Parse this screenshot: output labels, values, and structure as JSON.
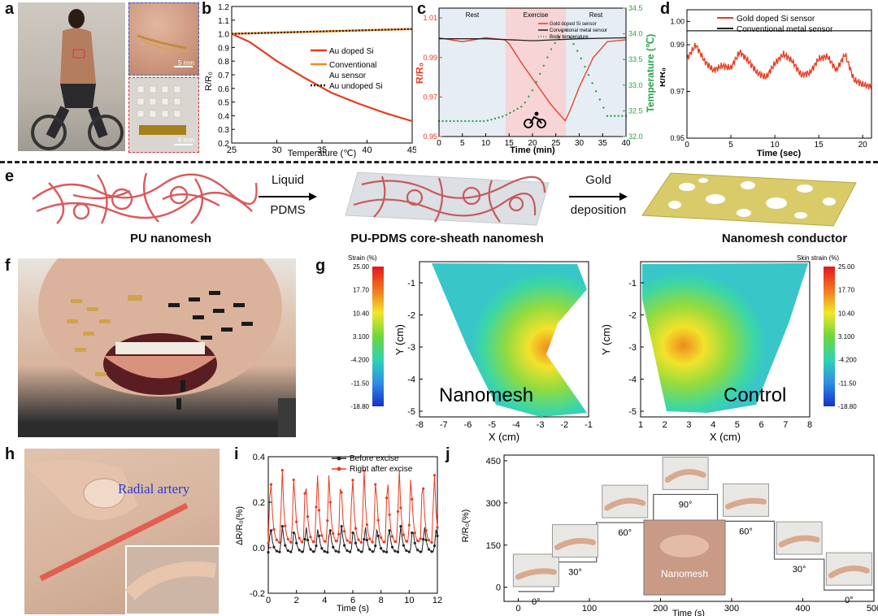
{
  "panels": {
    "a": "a",
    "b": "b",
    "c": "c",
    "d": "d",
    "e": "e",
    "f": "f",
    "g": "g",
    "h": "h",
    "i": "i",
    "j": "j"
  },
  "a": {
    "scale_top": "5 mm",
    "scale_bottom": "6 mm"
  },
  "b": {
    "chart_data": {
      "type": "line",
      "xlabel": "Temperature (℃)",
      "ylabel": "R/R₀",
      "xlim": [
        25,
        45
      ],
      "ylim": [
        0.2,
        1.2
      ],
      "xticks": [
        25,
        30,
        35,
        40,
        45
      ],
      "yticks": [
        0.2,
        0.3,
        0.4,
        0.5,
        0.6,
        0.7,
        0.8,
        0.9,
        1.0,
        1.1,
        1.2
      ],
      "series": [
        {
          "name": "Au doped Si",
          "color": "#e83a1e",
          "x": [
            25,
            27,
            30,
            33,
            36,
            39,
            42,
            45
          ],
          "y": [
            1.0,
            0.94,
            0.8,
            0.68,
            0.57,
            0.49,
            0.42,
            0.36
          ]
        },
        {
          "name": "Conventional Au sensor",
          "color": "#f08a24",
          "x": [
            25,
            45
          ],
          "y": [
            1.0,
            1.035
          ]
        },
        {
          "name": "Au undoped Si",
          "color": "#222222",
          "x": [
            25,
            45
          ],
          "y": [
            1.0,
            1.035
          ]
        }
      ],
      "legend": [
        "Au doped Si",
        "Conventional",
        "Au sensor",
        "Au undoped Si"
      ]
    }
  },
  "c": {
    "chart_data": {
      "type": "line",
      "xlabel": "Time (min)",
      "ylabel_left": "R/R₀",
      "ylabel_right": "Temperature (℃)",
      "xlim": [
        0,
        40
      ],
      "ylim": [
        0.95,
        1.015
      ],
      "ylim_right": [
        32.0,
        34.5
      ],
      "xticks": [
        0,
        5,
        10,
        15,
        20,
        25,
        30,
        35,
        40
      ],
      "yticks": [
        0.95,
        0.97,
        0.99,
        1.01
      ],
      "yticks_right": [
        32.0,
        32.5,
        33.0,
        33.5,
        34.0,
        34.5
      ],
      "regions": [
        "Rest",
        "Exercise",
        "Rest"
      ],
      "series": [
        {
          "name": "Gold doped Si sensor",
          "color": "#e83a1e",
          "x": [
            0,
            5,
            10,
            14,
            15,
            18,
            21,
            24,
            27,
            28,
            30,
            33,
            36,
            40
          ],
          "y": [
            1.0,
            0.998,
            1.0,
            0.999,
            0.997,
            0.986,
            0.976,
            0.966,
            0.958,
            0.963,
            0.975,
            0.99,
            0.998,
            0.999
          ]
        },
        {
          "name": "Conventional metal sensor",
          "color": "#222222",
          "x": [
            0,
            10,
            20,
            30,
            40
          ],
          "y": [
            0.9995,
            0.9995,
            0.9985,
            0.9995,
            1.0
          ]
        },
        {
          "name": "Body temperature",
          "color": "#2aa24a",
          "x": [
            0,
            5,
            10,
            14,
            16,
            18,
            20,
            22,
            24,
            26,
            27,
            30,
            33,
            36,
            40
          ],
          "y": [
            32.3,
            32.3,
            32.3,
            32.4,
            32.5,
            32.6,
            32.9,
            33.3,
            33.7,
            34.0,
            34.1,
            33.6,
            33.0,
            32.4,
            32.4
          ]
        }
      ]
    }
  },
  "d": {
    "chart_data": {
      "type": "line",
      "xlabel": "Time (sec)",
      "ylabel": "R/R₀",
      "xlim": [
        0,
        21
      ],
      "ylim": [
        0.95,
        1.005
      ],
      "xticks": [
        0,
        5,
        10,
        15,
        20
      ],
      "yticks": [
        0.95,
        0.97,
        0.99,
        1.0
      ],
      "series": [
        {
          "name": "Gold doped Si sensor",
          "color": "#e83a1e",
          "x": [
            0,
            1,
            2,
            3,
            4,
            5,
            6,
            7,
            8,
            9,
            10,
            11,
            12,
            13,
            14,
            15,
            16,
            17,
            18,
            19,
            20,
            21
          ],
          "y": [
            0.984,
            0.99,
            0.983,
            0.979,
            0.981,
            0.98,
            0.987,
            0.983,
            0.978,
            0.976,
            0.982,
            0.986,
            0.983,
            0.977,
            0.978,
            0.984,
            0.985,
            0.979,
            0.986,
            0.975,
            0.973,
            0.972
          ]
        },
        {
          "name": "Conventional metal sensor",
          "color": "#222222",
          "x": [
            0,
            21
          ],
          "y": [
            0.996,
            0.996
          ]
        }
      ]
    }
  },
  "e": {
    "arrow1_top": "Liquid",
    "arrow1_bottom": "PDMS",
    "arrow2_top": "Gold",
    "arrow2_bottom": "deposition",
    "cap1": "PU nanomesh",
    "cap2": "PU-PDMS core-sheath nanomesh",
    "cap3": "Nanomesh conductor"
  },
  "g": {
    "left_title": "Strain (%)",
    "right_title": "Skin strain (%)",
    "left_label": "Nanomesh",
    "right_label": "Control",
    "colorbar_ticks": [
      "25.00",
      "17.70",
      "10.40",
      "3.100",
      "-4.200",
      "-11.50",
      "-18.80"
    ],
    "colorbar_ticks_right": [
      "25.00",
      "17.70",
      "10.40",
      "3.100",
      "-4.200",
      "-11.50",
      "-18.80"
    ],
    "ylabel": "Y (cm)",
    "xlabel": "X (cm)",
    "yticks": [
      "-1",
      "-2",
      "-3",
      "-4",
      "-5"
    ],
    "xticks_left": [
      "-8",
      "-7",
      "-6",
      "-5",
      "-4",
      "-3",
      "-2",
      "-1"
    ],
    "xticks_right": [
      "1",
      "2",
      "3",
      "4",
      "5",
      "6",
      "7",
      "8"
    ]
  },
  "h": {
    "label": "Radial artery"
  },
  "i": {
    "chart_data": {
      "type": "line",
      "xlabel": "Time (s)",
      "ylabel": "ΔR/R₀(%)",
      "xlim": [
        0,
        12
      ],
      "ylim": [
        -0.2,
        0.4
      ],
      "xticks": [
        0,
        2,
        4,
        6,
        8,
        10,
        12
      ],
      "yticks": [
        -0.2,
        0.0,
        0.2,
        0.4
      ],
      "series": [
        {
          "name": "Before excise",
          "color": "#222222",
          "period": 0.84,
          "base": 0.0,
          "peak": 0.12
        },
        {
          "name": "Right after excise",
          "color": "#e83a1e",
          "period": 0.83,
          "base": 0.02,
          "peak": 0.33
        }
      ]
    }
  },
  "j": {
    "chart_data": {
      "type": "line",
      "xlabel": "Time (s)",
      "ylabel": "R/R₀(%)",
      "xlim": [
        -20,
        500
      ],
      "ylim": [
        -50,
        470
      ],
      "xticks": [
        0,
        100,
        200,
        300,
        400,
        500
      ],
      "yticks": [
        0,
        150,
        300,
        450
      ],
      "steps": [
        {
          "x0": 0,
          "x1": 50,
          "y": -15
        },
        {
          "x0": 50,
          "x1": 110,
          "y": 90
        },
        {
          "x0": 110,
          "x1": 190,
          "y": 230
        },
        {
          "x0": 190,
          "x1": 280,
          "y": 330
        },
        {
          "x0": 280,
          "x1": 360,
          "y": 235
        },
        {
          "x0": 360,
          "x1": 430,
          "y": 100
        },
        {
          "x0": 430,
          "x1": 500,
          "y": -10
        }
      ],
      "angles": [
        "0°",
        "30°",
        "60°",
        "90°",
        "60°",
        "30°",
        "0°"
      ],
      "inset_label": "Nanomesh"
    }
  }
}
